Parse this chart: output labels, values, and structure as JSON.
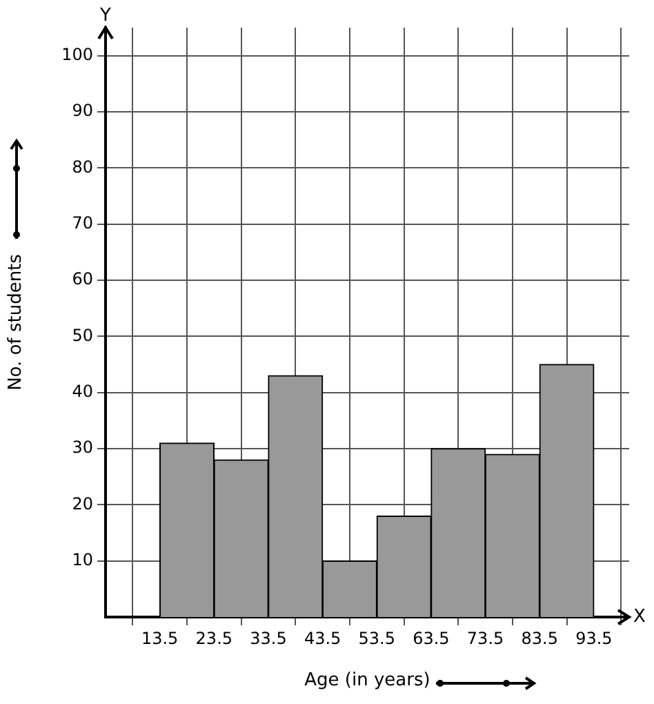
{
  "chart_data": {
    "type": "histogram",
    "bins": [
      13.5,
      23.5,
      33.5,
      43.5,
      53.5,
      63.5,
      73.5,
      83.5,
      93.5
    ],
    "values": [
      31,
      28,
      43,
      10,
      18,
      30,
      29,
      45
    ],
    "color": "#999999",
    "xlabel": "Age (in years)",
    "ylabel": "No. of students",
    "xlim": [
      3.5,
      100
    ],
    "xticks": [
      13.5,
      23.5,
      33.5,
      43.5,
      53.5,
      63.5,
      73.5,
      83.5,
      93.5
    ],
    "ylim": [
      0,
      105
    ],
    "yticks": [
      10,
      20,
      30,
      40,
      50,
      60,
      70,
      80,
      90,
      100
    ],
    "annotations": [
      "Y",
      "X"
    ],
    "grid": true
  }
}
